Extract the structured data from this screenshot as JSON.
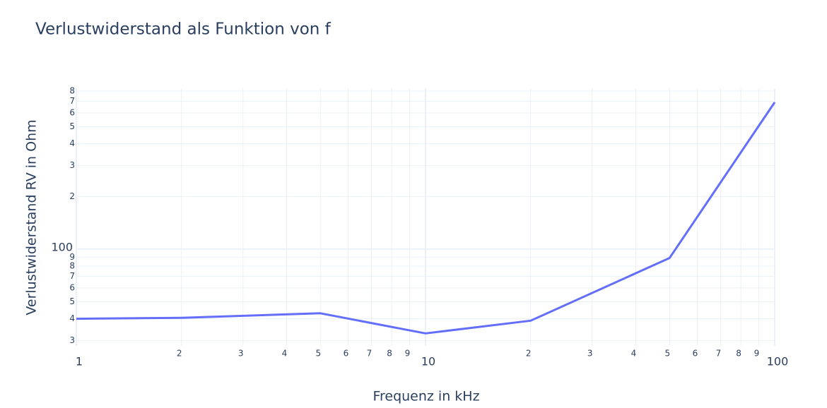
{
  "chart_data": {
    "type": "line",
    "title": "Verlustwiderstand als Funktion von f",
    "x_label": "Frequenz in kHz",
    "y_label": "Verlustwiderstand RV in Ohm",
    "x": [
      1,
      2,
      5,
      10,
      20,
      50,
      100
    ],
    "series": [
      {
        "name": "RV",
        "color": "#636efa",
        "values": [
          40,
          40.5,
          43,
          33,
          39,
          89,
          690
        ]
      }
    ],
    "xscale": "log",
    "yscale": "log",
    "grid": true,
    "xlim": [
      1,
      100
    ],
    "ylim": [
      28,
      830
    ],
    "xticks": [
      1,
      {
        "value": 2,
        "label": "2"
      },
      {
        "value": 3,
        "label": "3"
      },
      {
        "value": 4,
        "label": "4"
      },
      {
        "value": 5,
        "label": "5"
      },
      {
        "value": 6,
        "label": "6"
      },
      {
        "value": 7,
        "label": "7"
      },
      {
        "value": 8,
        "label": "8"
      },
      {
        "value": 9,
        "label": "9"
      },
      10,
      {
        "value": 20,
        "label": "2"
      },
      {
        "value": 30,
        "label": "3"
      },
      {
        "value": 40,
        "label": "4"
      },
      {
        "value": 50,
        "label": "5"
      },
      {
        "value": 60,
        "label": "6"
      },
      {
        "value": 70,
        "label": "7"
      },
      {
        "value": 80,
        "label": "8"
      },
      {
        "value": 90,
        "label": "9"
      },
      100
    ],
    "yticks": [
      {
        "value": 30,
        "label": "3"
      },
      {
        "value": 40,
        "label": "4"
      },
      {
        "value": 50,
        "label": "5"
      },
      {
        "value": 60,
        "label": "6"
      },
      {
        "value": 70,
        "label": "7"
      },
      {
        "value": 80,
        "label": "8"
      },
      {
        "value": 90,
        "label": "9"
      },
      100,
      {
        "value": 200,
        "label": "2"
      },
      {
        "value": 300,
        "label": "3"
      },
      {
        "value": 400,
        "label": "4"
      },
      {
        "value": 500,
        "label": "5"
      },
      {
        "value": 600,
        "label": "6"
      },
      {
        "value": 700,
        "label": "7"
      },
      {
        "value": 800,
        "label": "8"
      }
    ]
  }
}
